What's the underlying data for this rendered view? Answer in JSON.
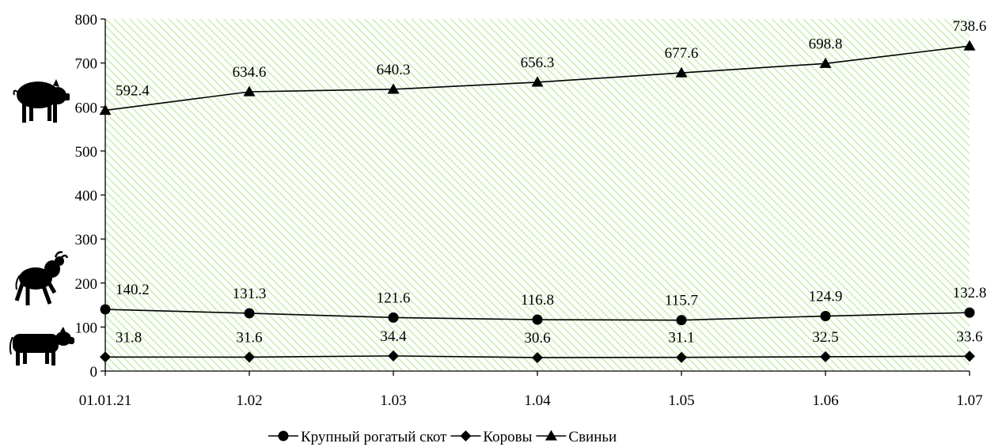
{
  "chart_data": {
    "type": "line",
    "title": "",
    "xlabel": "",
    "ylabel": "",
    "categories": [
      "01.01.21",
      "1.02",
      "1.03",
      "1.04",
      "1.05",
      "1.06",
      "1.07"
    ],
    "ylim": [
      0,
      800
    ],
    "yticks": [
      0,
      100,
      200,
      300,
      400,
      500,
      600,
      700,
      800
    ],
    "grid": false,
    "background": "light-green diagonal hatch",
    "legend_position": "bottom",
    "series": [
      {
        "name": "Крупный рогатый скот",
        "marker": "circle",
        "color": "#000000",
        "values": [
          140.2,
          131.3,
          121.6,
          116.8,
          115.7,
          124.9,
          132.8
        ],
        "labels": [
          "140.2",
          "131.3",
          "121.6",
          "116.8",
          "115.7",
          "124.9",
          "132.8"
        ]
      },
      {
        "name": "Коровы",
        "marker": "diamond",
        "color": "#000000",
        "values": [
          31.8,
          31.6,
          34.4,
          30.6,
          31.1,
          32.5,
          33.6
        ],
        "labels": [
          "31.8",
          "31.6",
          "34.4",
          "30.6",
          "31.1",
          "32.5",
          "33.6"
        ]
      },
      {
        "name": "Свиньи",
        "marker": "triangle",
        "color": "#000000",
        "values": [
          592.4,
          634.6,
          640.3,
          656.3,
          677.6,
          698.8,
          738.6
        ],
        "labels": [
          "592.4",
          "634.6",
          "640.3",
          "656.3",
          "677.6",
          "698.8",
          "738.6"
        ]
      }
    ],
    "icons": [
      "pig-icon",
      "bull-icon",
      "cow-icon"
    ],
    "colors": {
      "hatch": "#c9ecb0",
      "line": "#000000"
    }
  }
}
